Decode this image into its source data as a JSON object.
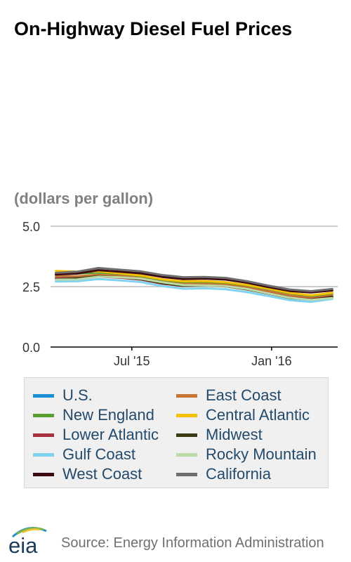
{
  "chart_data": {
    "type": "line",
    "title": "On-Highway Diesel Fuel Prices",
    "ylabel": "(dollars per gallon)",
    "ylim": [
      0,
      5
    ],
    "yticks": [
      "5.0",
      "2.5",
      "0.0"
    ],
    "ytick_values": [
      5,
      2.5,
      0
    ],
    "x": [
      "2015-03-23",
      "2015-04-20",
      "2015-05-18",
      "2015-06-15",
      "2015-07-13",
      "2015-08-10",
      "2015-09-07",
      "2015-10-05",
      "2015-11-02",
      "2015-11-30",
      "2015-12-28",
      "2016-01-25",
      "2016-02-22",
      "2016-03-21"
    ],
    "xlim": [
      "2015-03-16",
      "2016-03-28"
    ],
    "xticks": [
      {
        "label": "Jul '15",
        "date": "2015-07-01"
      },
      {
        "label": "Jan '16",
        "date": "2016-01-01"
      }
    ],
    "grid": true,
    "legend_position": "bottom",
    "series": [
      {
        "name": "U.S.",
        "color": "#1a8fd1",
        "values": [
          2.85,
          2.86,
          2.94,
          2.89,
          2.81,
          2.65,
          2.56,
          2.57,
          2.53,
          2.41,
          2.24,
          2.06,
          1.98,
          2.08
        ]
      },
      {
        "name": "East Coast",
        "color": "#c87533",
        "values": [
          2.93,
          2.93,
          2.99,
          2.95,
          2.86,
          2.69,
          2.61,
          2.62,
          2.59,
          2.47,
          2.31,
          2.13,
          2.05,
          2.16
        ]
      },
      {
        "name": "New England",
        "color": "#5a9e2f",
        "values": [
          3.05,
          3.04,
          3.08,
          3.03,
          2.94,
          2.77,
          2.69,
          2.7,
          2.66,
          2.55,
          2.4,
          2.22,
          2.12,
          2.22
        ]
      },
      {
        "name": "Central Atlantic",
        "color": "#f5c000",
        "values": [
          3.15,
          3.12,
          3.13,
          3.05,
          2.96,
          2.8,
          2.72,
          2.73,
          2.68,
          2.57,
          2.42,
          2.24,
          2.14,
          2.24
        ]
      },
      {
        "name": "Lower Atlantic",
        "color": "#a8323e",
        "values": [
          2.84,
          2.84,
          2.91,
          2.87,
          2.79,
          2.62,
          2.53,
          2.55,
          2.52,
          2.4,
          2.23,
          2.05,
          1.98,
          2.09
        ]
      },
      {
        "name": "Midwest",
        "color": "#3b3a12",
        "values": [
          2.8,
          2.84,
          2.93,
          2.89,
          2.81,
          2.64,
          2.53,
          2.55,
          2.51,
          2.38,
          2.21,
          2.03,
          1.96,
          2.07
        ]
      },
      {
        "name": "Gulf Coast",
        "color": "#7fd3f0",
        "values": [
          2.71,
          2.72,
          2.81,
          2.76,
          2.69,
          2.52,
          2.41,
          2.43,
          2.39,
          2.27,
          2.11,
          1.94,
          1.87,
          1.99
        ]
      },
      {
        "name": "Rocky Mountain",
        "color": "#bcd9a8",
        "values": [
          2.79,
          2.8,
          2.91,
          2.89,
          2.83,
          2.68,
          2.56,
          2.55,
          2.52,
          2.4,
          2.22,
          2.04,
          1.95,
          2.03
        ]
      },
      {
        "name": "West Coast",
        "color": "#3d0a12",
        "values": [
          3.0,
          3.04,
          3.18,
          3.12,
          3.05,
          2.9,
          2.81,
          2.83,
          2.79,
          2.66,
          2.48,
          2.32,
          2.26,
          2.34
        ]
      },
      {
        "name": "California",
        "color": "#6e6e6e",
        "values": [
          3.07,
          3.12,
          3.27,
          3.2,
          3.13,
          2.98,
          2.89,
          2.9,
          2.86,
          2.72,
          2.54,
          2.38,
          2.31,
          2.4
        ]
      }
    ]
  },
  "source": "Source: Energy Information Administration",
  "logo_text": "eia"
}
